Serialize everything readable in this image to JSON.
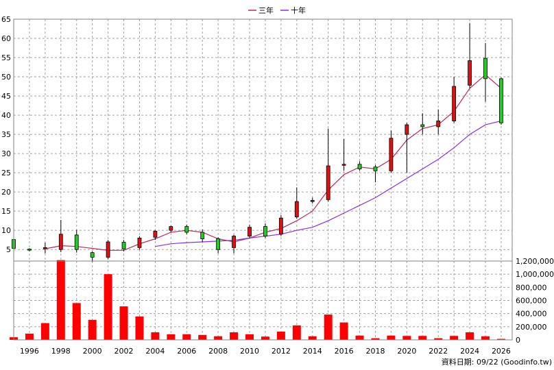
{
  "chart_data": {
    "type": "candlestick",
    "legend": [
      {
        "name": "三年",
        "color": "#c0245a"
      },
      {
        "name": "十年",
        "color": "#8a2be2"
      }
    ],
    "legend_position": "top-center",
    "grid": true,
    "x_ticks": [
      "1996",
      "1998",
      "2000",
      "2002",
      "2004",
      "2006",
      "2008",
      "2010",
      "2012",
      "2014",
      "2016",
      "2018",
      "2020",
      "2022",
      "2024",
      "2026"
    ],
    "price_axis": {
      "ylim": [
        2,
        65
      ],
      "ticks": [
        5,
        10,
        15,
        20,
        25,
        30,
        35,
        40,
        45,
        50,
        55,
        60,
        65
      ],
      "side": "left"
    },
    "volume_axis": {
      "ylim": [
        0,
        1200000
      ],
      "ticks": [
        0,
        200000,
        400000,
        600000,
        800000,
        1000000,
        1200000
      ],
      "tick_labels": [
        "0",
        "200,000",
        "400,000",
        "600,000",
        "800,000",
        "1,000,000",
        "1,200,000"
      ],
      "side": "right"
    },
    "candles": [
      {
        "year": 1995,
        "open": 5.3,
        "close": 7.6,
        "high": 8.6,
        "low": 4.2
      },
      {
        "year": 1996,
        "open": 5.0,
        "close": 5.1,
        "high": 5.3,
        "low": 4.5
      },
      {
        "year": 1997,
        "open": 5.5,
        "close": 5.2,
        "high": 6.8,
        "low": 4.0
      },
      {
        "year": 1998,
        "open": 9.0,
        "close": 5.0,
        "high": 12.7,
        "low": 4.3
      },
      {
        "year": 1999,
        "open": 5.0,
        "close": 8.8,
        "high": 10.1,
        "low": 4.2
      },
      {
        "year": 2000,
        "open": 3.0,
        "close": 4.2,
        "high": 4.5,
        "low": 1.8
      },
      {
        "year": 2001,
        "open": 7.0,
        "close": 3.0,
        "high": 7.5,
        "low": 2.5
      },
      {
        "year": 2002,
        "open": 5.2,
        "close": 6.9,
        "high": 7.5,
        "low": 4.5
      },
      {
        "year": 2003,
        "open": 8.0,
        "close": 5.5,
        "high": 8.5,
        "low": 5.0
      },
      {
        "year": 2004,
        "open": 9.8,
        "close": 8.2,
        "high": 10.0,
        "low": 7.5
      },
      {
        "year": 2005,
        "open": 11.0,
        "close": 10.0,
        "high": 11.2,
        "low": 9.5
      },
      {
        "year": 2006,
        "open": 9.5,
        "close": 11.0,
        "high": 11.5,
        "low": 9.0
      },
      {
        "year": 2007,
        "open": 7.8,
        "close": 9.5,
        "high": 10.2,
        "low": 7.0
      },
      {
        "year": 2008,
        "open": 5.0,
        "close": 7.8,
        "high": 8.2,
        "low": 4.0
      },
      {
        "year": 2009,
        "open": 8.5,
        "close": 5.5,
        "high": 8.8,
        "low": 4.0
      },
      {
        "year": 2010,
        "open": 10.8,
        "close": 8.5,
        "high": 11.5,
        "low": 8.0
      },
      {
        "year": 2011,
        "open": 8.5,
        "close": 11.0,
        "high": 11.8,
        "low": 8.0
      },
      {
        "year": 2012,
        "open": 13.2,
        "close": 9.0,
        "high": 14.0,
        "low": 8.5
      },
      {
        "year": 2013,
        "open": 17.5,
        "close": 13.5,
        "high": 21.2,
        "low": 13.0
      },
      {
        "year": 2014,
        "open": 17.8,
        "close": 17.5,
        "high": 18.5,
        "low": 17.0
      },
      {
        "year": 2015,
        "open": 26.8,
        "close": 18.0,
        "high": 36.5,
        "low": 17.5
      },
      {
        "year": 2016,
        "open": 27.2,
        "close": 27.0,
        "high": 33.8,
        "low": 25.5
      },
      {
        "year": 2017,
        "open": 26.0,
        "close": 27.2,
        "high": 28.0,
        "low": 25.5
      },
      {
        "year": 2018,
        "open": 25.5,
        "close": 26.5,
        "high": 27.0,
        "low": 22.5
      },
      {
        "year": 2019,
        "open": 34.0,
        "close": 25.5,
        "high": 36.0,
        "low": 25.0
      },
      {
        "year": 2020,
        "open": 37.5,
        "close": 35.0,
        "high": 38.0,
        "low": 25.0
      },
      {
        "year": 2021,
        "open": 37.0,
        "close": 37.5,
        "high": 40.5,
        "low": 35.0
      },
      {
        "year": 2022,
        "open": 38.5,
        "close": 37.0,
        "high": 41.5,
        "low": 35.0
      },
      {
        "year": 2023,
        "open": 47.5,
        "close": 38.5,
        "high": 50.0,
        "low": 38.0
      },
      {
        "year": 2024,
        "open": 54.2,
        "close": 47.8,
        "high": 64.0,
        "low": 47.0
      },
      {
        "year": 2025,
        "open": 49.5,
        "close": 54.8,
        "high": 58.8,
        "low": 43.5
      },
      {
        "year": 2026,
        "open": 38.0,
        "close": 49.5,
        "high": 49.8,
        "low": 37.5
      }
    ],
    "series": [
      {
        "name": "三年",
        "x": [
          1997,
          1998,
          1999,
          2000,
          2001,
          2002,
          2003,
          2004,
          2005,
          2006,
          2007,
          2008,
          2009,
          2010,
          2011,
          2012,
          2013,
          2014,
          2015,
          2016,
          2017,
          2018,
          2019,
          2020,
          2021,
          2022,
          2023,
          2024,
          2025,
          2026
        ],
        "values": [
          5.2,
          6.0,
          5.8,
          5.3,
          4.8,
          4.8,
          6.5,
          7.8,
          9.5,
          10.0,
          9.5,
          7.8,
          7.0,
          8.0,
          9.5,
          10.5,
          12.5,
          15.0,
          20.5,
          24.5,
          26.5,
          26.0,
          28.5,
          33.5,
          36.5,
          37.5,
          41.0,
          47.0,
          50.5,
          47.0
        ]
      },
      {
        "name": "十年",
        "x": [
          2004,
          2005,
          2006,
          2007,
          2008,
          2009,
          2010,
          2011,
          2012,
          2013,
          2014,
          2015,
          2016,
          2017,
          2018,
          2019,
          2020,
          2021,
          2022,
          2023,
          2024,
          2025,
          2026
        ],
        "values": [
          5.8,
          6.5,
          6.8,
          7.0,
          7.2,
          7.4,
          8.0,
          8.5,
          9.0,
          10.0,
          10.8,
          12.5,
          14.5,
          16.5,
          18.5,
          21.0,
          23.5,
          26.0,
          28.5,
          31.5,
          35.0,
          37.5,
          38.5
        ]
      }
    ],
    "volume": {
      "x": [
        1995,
        1996,
        1997,
        1998,
        1999,
        2000,
        2001,
        2002,
        2003,
        2004,
        2005,
        2006,
        2007,
        2008,
        2009,
        2010,
        2011,
        2012,
        2013,
        2014,
        2015,
        2016,
        2017,
        2018,
        2019,
        2020,
        2021,
        2022,
        2023,
        2024,
        2025,
        2026
      ],
      "values": [
        40000,
        95000,
        255000,
        1215000,
        560000,
        305000,
        1000000,
        510000,
        355000,
        115000,
        85000,
        85000,
        75000,
        55000,
        115000,
        85000,
        50000,
        125000,
        220000,
        55000,
        385000,
        265000,
        65000,
        25000,
        65000,
        60000,
        60000,
        25000,
        60000,
        115000,
        55000,
        15000
      ],
      "color": "#ff0000"
    },
    "source_note": "資料日期: 09/22  (Goodinfo.tw)"
  }
}
